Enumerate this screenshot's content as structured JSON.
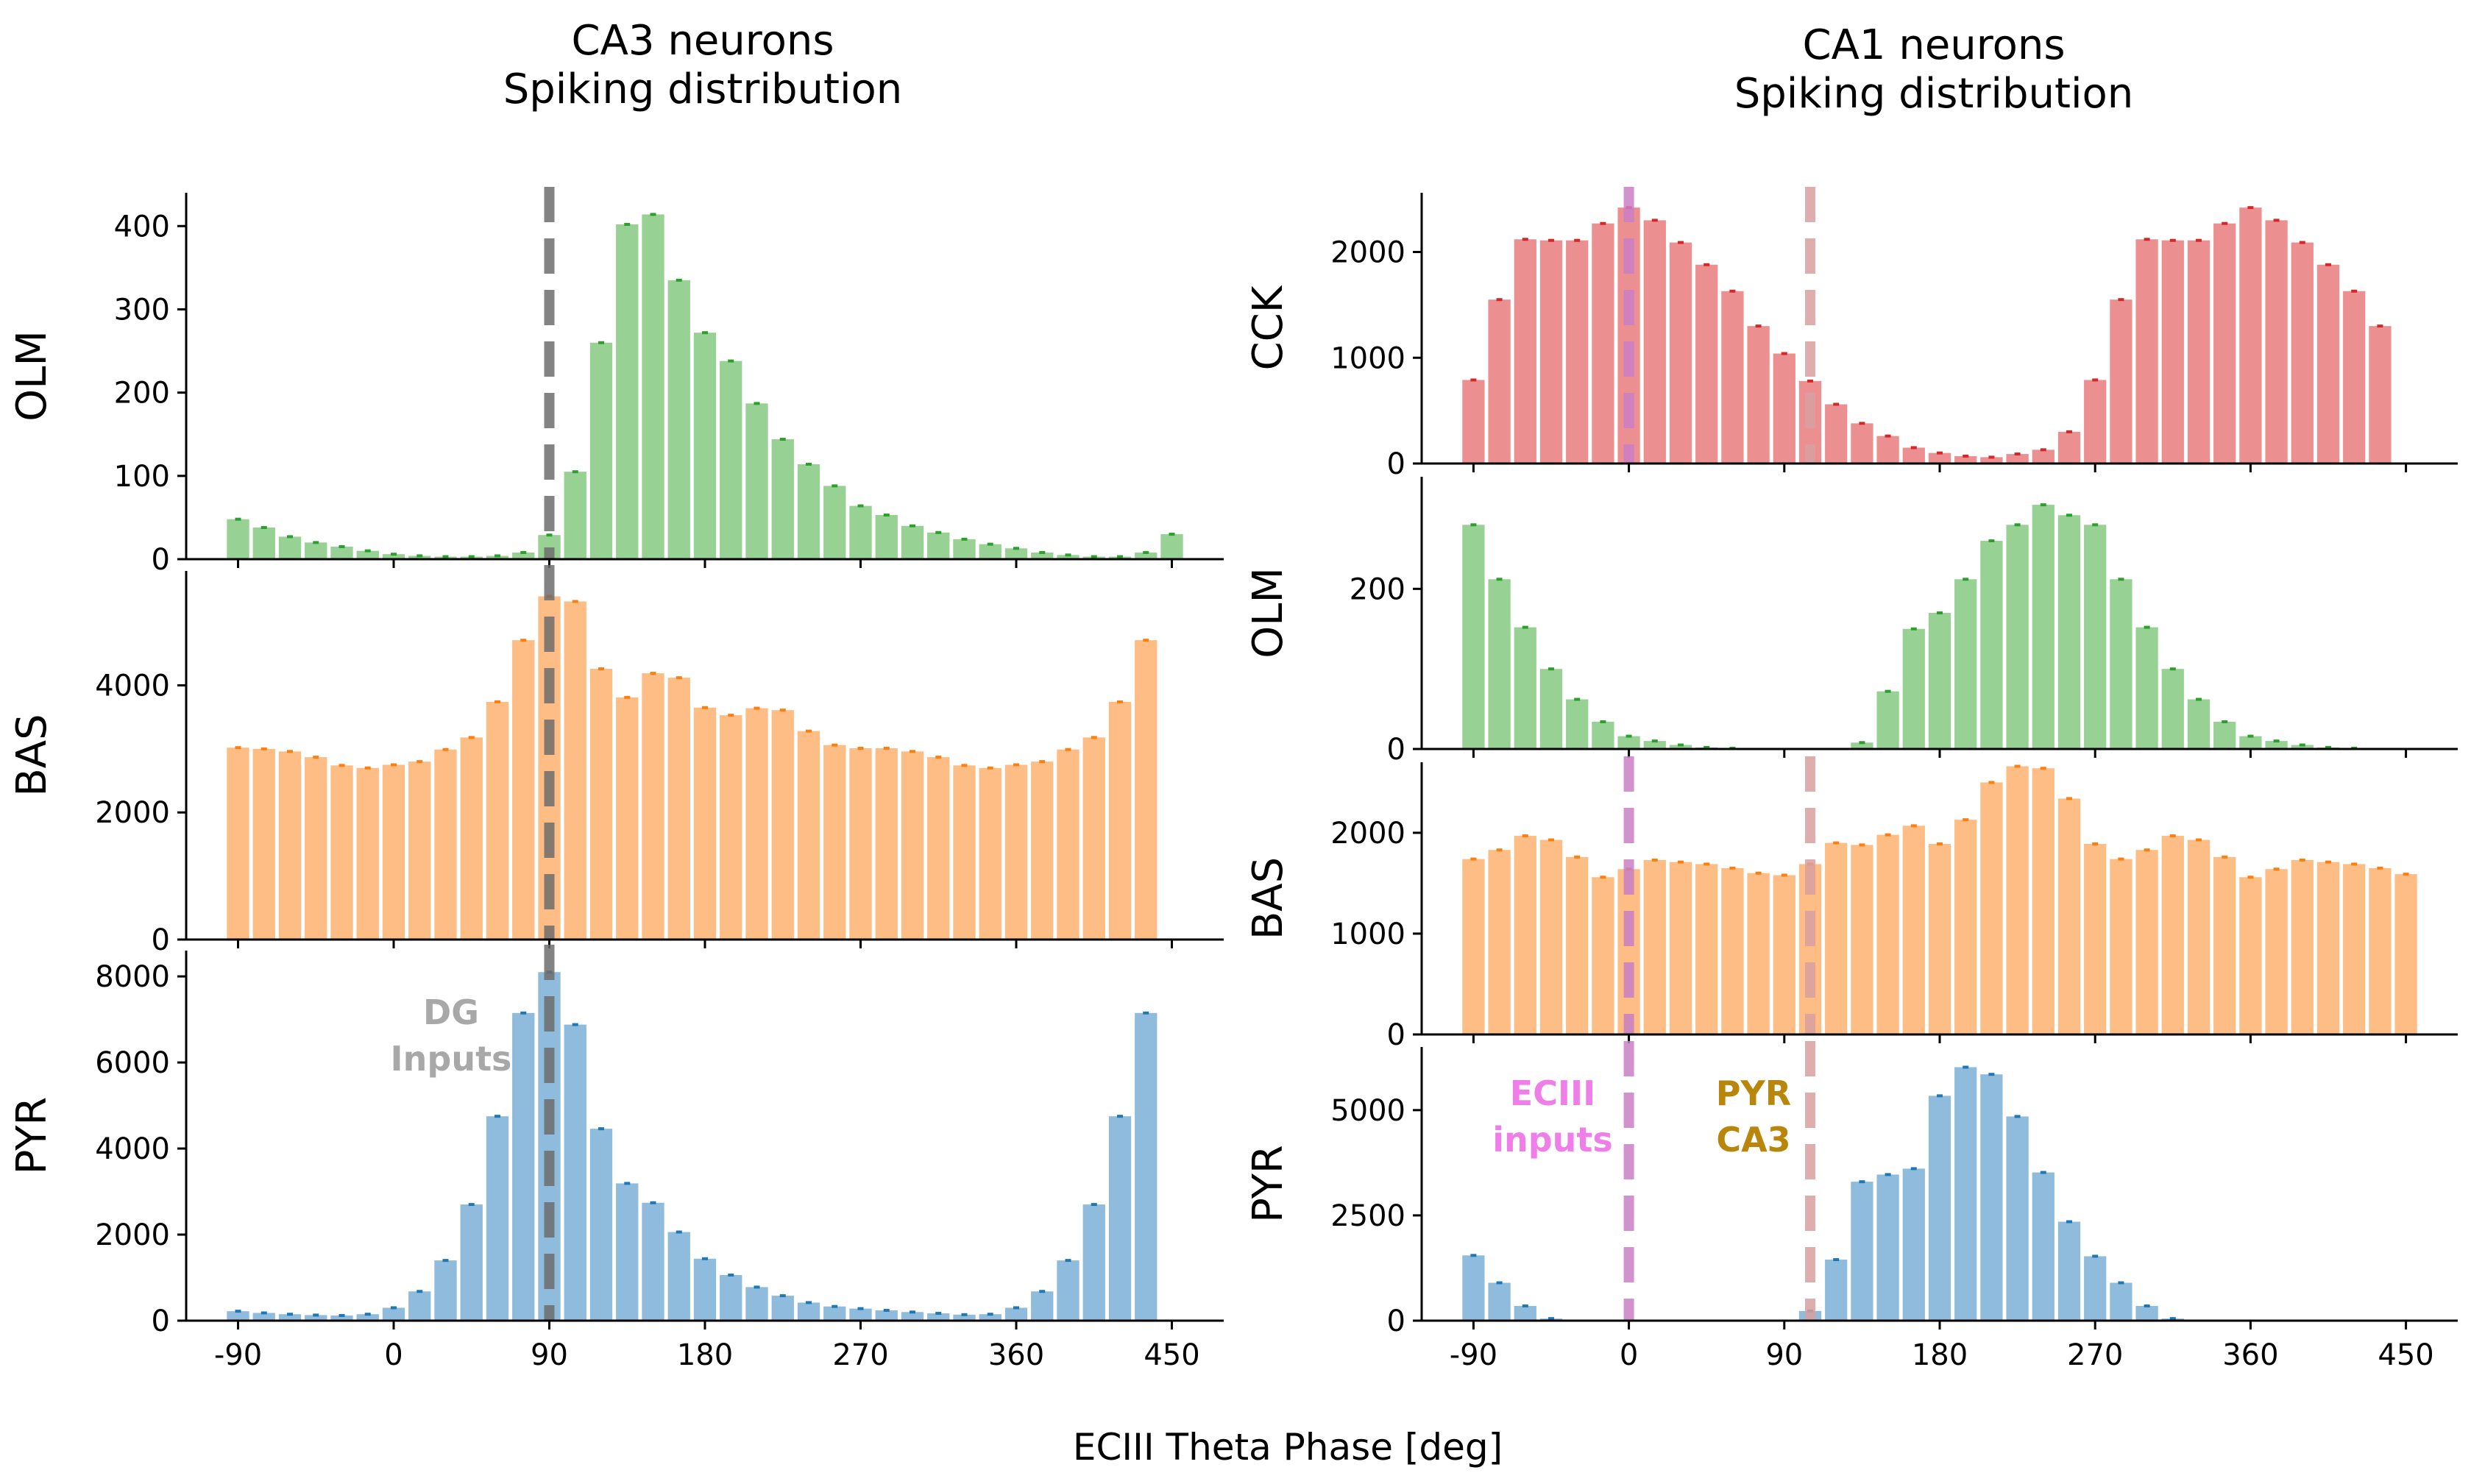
{
  "figure": {
    "xlabel": "ECIII Theta Phase [deg]",
    "colors": {
      "OLM": "#98d194",
      "BAS": "#fdbd85",
      "PYR": "#8fbcdc",
      "CCK": "#eb8f91",
      "OLM_err": "#2ca02c",
      "BAS_err": "#ff7f0e",
      "PYR_err": "#1f77b4",
      "CCK_err": "#d62728",
      "dg_line": "#6e6e6e",
      "ec3_line": "#c97fc6",
      "pyr_ca3_line": "#d9a0a0",
      "dg_text": "#a8a8a8",
      "ec3_text": "#f07ee8",
      "pyr_ca3_text": "#b8860b"
    }
  },
  "annotations": {
    "dg": [
      "DG",
      "Inputs"
    ],
    "ec3": [
      "ECIII",
      "inputs"
    ],
    "pyr_ca3": [
      "PYR",
      "CA3"
    ]
  },
  "chart_data": [
    {
      "type": "bar",
      "title": [
        "CA3 neurons",
        "Spiking distribution"
      ],
      "ylabel": "OLM",
      "x": [
        -90,
        -75,
        -60,
        -45,
        -30,
        -15,
        0,
        15,
        30,
        45,
        60,
        75,
        90,
        105,
        120,
        135,
        150,
        165,
        180,
        195,
        210,
        225,
        240,
        255,
        270,
        285,
        300,
        315,
        330,
        345,
        360,
        375,
        390,
        405,
        420,
        435,
        450
      ],
      "values": [
        48,
        38,
        27,
        20,
        15,
        10,
        6,
        4,
        3,
        3,
        4,
        8,
        29,
        105,
        260,
        402,
        414,
        335,
        272,
        238,
        187,
        144,
        114,
        88,
        64,
        53,
        40,
        32,
        24,
        18,
        13,
        8,
        5,
        3,
        3,
        8,
        30
      ],
      "ylim": [
        0,
        440
      ],
      "yticks": [
        0,
        100,
        200,
        300,
        400
      ],
      "xlim": [
        -120,
        480
      ],
      "xticks": [
        -90,
        0,
        90,
        180,
        270,
        360,
        450
      ],
      "show_xticklabels": false,
      "vlines": [
        {
          "x": 90,
          "color_key": "dg_line",
          "dash": "top-stub"
        }
      ]
    },
    {
      "type": "bar",
      "ylabel": "BAS",
      "x": [
        -90,
        -75,
        -60,
        -45,
        -30,
        -15,
        0,
        15,
        30,
        45,
        60,
        75,
        90,
        105,
        120,
        135,
        150,
        165,
        180,
        195,
        210,
        225,
        240,
        255,
        270,
        285,
        300,
        315,
        330,
        345,
        360,
        375,
        390,
        405,
        420,
        435,
        450
      ],
      "values": [
        3020,
        3000,
        2960,
        2870,
        2740,
        2700,
        2750,
        2800,
        2990,
        3180,
        3740,
        4710,
        5400,
        5320,
        4260,
        3810,
        4190,
        4120,
        3650,
        3530,
        3640,
        3610,
        3280,
        3060,
        3010,
        3010,
        2960,
        2870,
        2740,
        2700,
        2750,
        2800,
        2990,
        3180,
        3740,
        4710,
        0
      ],
      "ylim": [
        0,
        5800
      ],
      "yticks": [
        0,
        2000,
        4000
      ],
      "xlim": [
        -120,
        480
      ],
      "xticks": [
        -90,
        0,
        90,
        180,
        270,
        360,
        450
      ],
      "show_xticklabels": false,
      "vlines": [
        {
          "x": 90,
          "color_key": "dg_line"
        }
      ]
    },
    {
      "type": "bar",
      "ylabel": "PYR",
      "x": [
        -90,
        -75,
        -60,
        -45,
        -30,
        -15,
        0,
        15,
        30,
        45,
        60,
        75,
        90,
        105,
        120,
        135,
        150,
        165,
        180,
        195,
        210,
        225,
        240,
        255,
        270,
        285,
        300,
        315,
        330,
        345,
        360,
        375,
        390,
        405,
        420,
        435,
        450
      ],
      "values": [
        220,
        180,
        150,
        130,
        120,
        150,
        300,
        680,
        1400,
        2700,
        4750,
        7150,
        8100,
        6880,
        4460,
        3190,
        2740,
        2060,
        1440,
        1060,
        780,
        580,
        420,
        330,
        280,
        240,
        200,
        170,
        140,
        150,
        300,
        680,
        1400,
        2700,
        4750,
        7150,
        0
      ],
      "ylim": [
        0,
        8600
      ],
      "yticks": [
        0,
        2000,
        4000,
        6000,
        8000
      ],
      "xlim": [
        -120,
        480
      ],
      "xticks": [
        -90,
        0,
        90,
        180,
        270,
        360,
        450
      ],
      "xticklabels": [
        "-90",
        "0",
        "90",
        "180",
        "270",
        "360",
        "450"
      ],
      "show_xticklabels": true,
      "vlines": [
        {
          "x": 90,
          "color_key": "dg_line",
          "dash": "top-stub"
        }
      ]
    },
    {
      "type": "bar",
      "title": [
        "CA1 neurons",
        "Spiking distribution"
      ],
      "ylabel": "CCK",
      "x": [
        -90,
        -75,
        -60,
        -45,
        -30,
        -15,
        0,
        15,
        30,
        45,
        60,
        75,
        90,
        105,
        120,
        135,
        150,
        165,
        180,
        195,
        210,
        225,
        240,
        255,
        270,
        285,
        300,
        315,
        330,
        345,
        360,
        375,
        390,
        405,
        420,
        435,
        450
      ],
      "values": [
        790,
        1550,
        2120,
        2110,
        2110,
        2270,
        2420,
        2300,
        2090,
        1880,
        1630,
        1300,
        1040,
        780,
        560,
        380,
        260,
        150,
        100,
        70,
        60,
        90,
        130,
        300,
        790,
        1550,
        2120,
        2110,
        2110,
        2270,
        2420,
        2300,
        2090,
        1880,
        1630,
        1300,
        0
      ],
      "ylim": [
        0,
        2560
      ],
      "yticks": [
        0,
        1000,
        2000
      ],
      "xlim": [
        -120,
        480
      ],
      "xticks": [
        -90,
        0,
        90,
        180,
        270,
        360,
        450
      ],
      "show_xticklabels": false,
      "vlines": [
        {
          "x": 0,
          "color_key": "ec3_line"
        },
        {
          "x": 105,
          "color_key": "pyr_ca3_line"
        }
      ]
    },
    {
      "type": "bar",
      "ylabel": "OLM",
      "x": [
        -90,
        -75,
        -60,
        -45,
        -30,
        -15,
        0,
        15,
        30,
        45,
        60,
        75,
        90,
        105,
        120,
        135,
        150,
        165,
        180,
        195,
        210,
        225,
        240,
        255,
        270,
        285,
        300,
        315,
        330,
        345,
        360,
        375,
        390,
        405,
        420,
        435,
        450
      ],
      "values": [
        280,
        212,
        152,
        100,
        62,
        34,
        16,
        10,
        5,
        2,
        1,
        0,
        0,
        0,
        0,
        8,
        72,
        150,
        170,
        212,
        260,
        280,
        305,
        292,
        280,
        212,
        152,
        100,
        62,
        34,
        16,
        10,
        5,
        2,
        1,
        0,
        0
      ],
      "ylim": [
        0,
        340
      ],
      "yticks": [
        0,
        200
      ],
      "xlim": [
        -120,
        480
      ],
      "xticks": [
        -90,
        0,
        90,
        180,
        270,
        360,
        450
      ],
      "show_xticklabels": false,
      "vlines": []
    },
    {
      "type": "bar",
      "ylabel": "BAS",
      "x": [
        -90,
        -75,
        -60,
        -45,
        -30,
        -15,
        0,
        15,
        30,
        45,
        60,
        75,
        90,
        105,
        120,
        135,
        150,
        165,
        180,
        195,
        210,
        225,
        240,
        255,
        270,
        285,
        300,
        315,
        330,
        345,
        360,
        375,
        390,
        405,
        420,
        435,
        450
      ],
      "values": [
        1740,
        1830,
        1970,
        1930,
        1760,
        1560,
        1640,
        1730,
        1710,
        1690,
        1650,
        1600,
        1580,
        1690,
        1900,
        1880,
        1980,
        2070,
        1890,
        2130,
        2500,
        2660,
        2640,
        2340,
        1890,
        1740,
        1830,
        1970,
        1930,
        1760,
        1560,
        1640,
        1730,
        1710,
        1690,
        1650,
        1590
      ],
      "ylim": [
        0,
        2700
      ],
      "yticks": [
        0,
        1000,
        2000
      ],
      "xlim": [
        -120,
        480
      ],
      "xticks": [
        -90,
        0,
        90,
        180,
        270,
        360,
        450
      ],
      "show_xticklabels": false,
      "vlines": [
        {
          "x": 0,
          "color_key": "ec3_line"
        },
        {
          "x": 105,
          "color_key": "pyr_ca3_line"
        }
      ]
    },
    {
      "type": "bar",
      "ylabel": "PYR",
      "x": [
        -90,
        -75,
        -60,
        -45,
        -30,
        -15,
        0,
        15,
        30,
        45,
        60,
        75,
        90,
        105,
        120,
        135,
        150,
        165,
        180,
        195,
        210,
        225,
        240,
        255,
        270,
        285,
        300,
        315,
        330,
        345,
        360,
        375,
        390,
        405,
        420,
        435,
        450
      ],
      "values": [
        1550,
        900,
        350,
        50,
        0,
        0,
        0,
        0,
        0,
        0,
        0,
        0,
        0,
        230,
        1450,
        3300,
        3470,
        3610,
        5340,
        6020,
        5850,
        4850,
        3520,
        2350,
        1530,
        900,
        350,
        50,
        0,
        0,
        0,
        0,
        0,
        0,
        0,
        0,
        0
      ],
      "ylim": [
        0,
        6500
      ],
      "yticks": [
        0,
        2500,
        5000
      ],
      "xlim": [
        -120,
        480
      ],
      "xticks": [
        -90,
        0,
        90,
        180,
        270,
        360,
        450
      ],
      "xticklabels": [
        "-90",
        "0",
        "90",
        "180",
        "270",
        "360",
        "450"
      ],
      "show_xticklabels": true,
      "vlines": [
        {
          "x": 0,
          "color_key": "ec3_line"
        },
        {
          "x": 105,
          "color_key": "pyr_ca3_line"
        }
      ]
    }
  ]
}
